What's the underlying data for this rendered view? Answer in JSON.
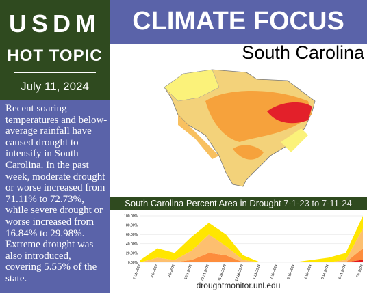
{
  "sidebar": {
    "brand": "USDM",
    "topic": "HOT TOPIC",
    "date": "July 11, 2024",
    "body": "Recent soaring temperatures and below-average rainfall have caused drought to intensify in South Carolina. In the past week, moderate drought or worse increased from 71.11% to 72.73%, while severe drought or worse increased from 16.84% to 29.98%. Extreme drought was also introduced, covering 5.55% of the state."
  },
  "header": {
    "title": "CLIMATE FOCUS",
    "region": "South Carolina"
  },
  "chart_data": {
    "type": "stacked-area",
    "title": "South Carolina Percent Area in Drought",
    "subtitle": "7-1-23 to 7-11-24",
    "categories": [
      "7-11-2023",
      "8-8-2023",
      "9-5-2023",
      "10-3-2023",
      "10-31-2023",
      "11-28-2023",
      "12-26-2023",
      "1-23-2024",
      "2-20-2024",
      "3-19-2024",
      "4-16-2024",
      "5-14-2024",
      "6-11-2024",
      "7-9-2024"
    ],
    "series": [
      {
        "color": "#e31a1c",
        "values": [
          0,
          0,
          0,
          0,
          0,
          0,
          0,
          0,
          0,
          0,
          0,
          0,
          0,
          5.55
        ]
      },
      {
        "color": "#fd8d3c",
        "values": [
          0,
          0,
          0,
          5,
          20,
          15,
          0,
          0,
          0,
          0,
          0,
          0,
          0,
          24.43
        ]
      },
      {
        "color": "#fdbf6f",
        "values": [
          0,
          10,
          5,
          20,
          40,
          20,
          5,
          0,
          0,
          0,
          0,
          0,
          5,
          42.75
        ]
      },
      {
        "color": "#ffe600",
        "values": [
          5,
          20,
          15,
          30,
          25,
          25,
          10,
          0,
          0,
          0,
          5,
          10,
          15,
          27.27
        ]
      }
    ],
    "ylim": [
      0,
      100
    ],
    "yticks": [
      {
        "value": 0,
        "label": "0.00%"
      },
      {
        "value": 20,
        "label": "20.00%"
      },
      {
        "value": 40,
        "label": "40.00%"
      },
      {
        "value": 60,
        "label": "60.00%"
      },
      {
        "value": 80,
        "label": "80.00%"
      },
      {
        "value": 100,
        "label": "100.00%"
      }
    ],
    "grid": true
  },
  "footer": "droughtmonitor.unl.edu"
}
